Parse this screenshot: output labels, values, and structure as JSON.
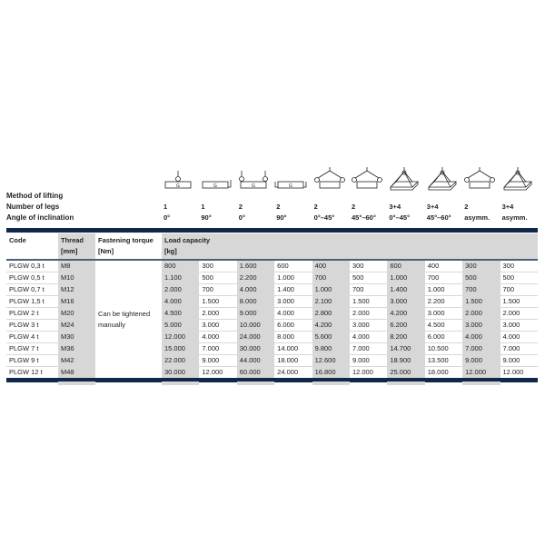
{
  "lifting": {
    "method_label": "Method of lifting",
    "legs_label": "Number of legs",
    "angle_label": "Angle of inclination",
    "methods": [
      {
        "icon": "single-leg-vertical-icon",
        "legs": "1",
        "angle": "0°"
      },
      {
        "icon": "single-leg-side-icon",
        "legs": "1",
        "angle": "90°"
      },
      {
        "icon": "two-leg-vertical-icon",
        "legs": "2",
        "angle": "0°"
      },
      {
        "icon": "two-leg-side-icon",
        "legs": "2",
        "angle": "90°"
      },
      {
        "icon": "two-leg-sling-icon",
        "legs": "2",
        "angle": "0°–45°"
      },
      {
        "icon": "two-leg-sling-icon",
        "legs": "2",
        "angle": "45°–60°"
      },
      {
        "icon": "multi-leg-sling-icon",
        "legs": "3+4",
        "angle": "0°–45°"
      },
      {
        "icon": "multi-leg-sling-icon",
        "legs": "3+4",
        "angle": "45°–60°"
      },
      {
        "icon": "two-leg-asym-icon",
        "legs": "2",
        "angle": "asymm."
      },
      {
        "icon": "multi-leg-asym-icon",
        "legs": "3+4",
        "angle": "asymm."
      }
    ]
  },
  "table": {
    "headers": {
      "code": "Code",
      "thread": "Thread",
      "thread_unit": "[mm]",
      "torque": "Fastening torque",
      "torque_unit": "[Nm]",
      "load": "Load capacity",
      "load_unit": "[kg]"
    },
    "torque_value": "Can be tightened manually",
    "rows": [
      {
        "code": "PLGW 0,3 t",
        "thread": "M8",
        "loads": [
          "800",
          "300",
          "1.600",
          "600",
          "400",
          "300",
          "600",
          "400",
          "300",
          "300"
        ]
      },
      {
        "code": "PLGW 0,5 t",
        "thread": "M10",
        "loads": [
          "1.100",
          "500",
          "2.200",
          "1.000",
          "700",
          "500",
          "1.000",
          "700",
          "500",
          "500"
        ]
      },
      {
        "code": "PLGW 0,7 t",
        "thread": "M12",
        "loads": [
          "2.000",
          "700",
          "4.000",
          "1.400",
          "1.000",
          "700",
          "1.400",
          "1.000",
          "700",
          "700"
        ]
      },
      {
        "code": "PLGW 1,5 t",
        "thread": "M16",
        "loads": [
          "4.000",
          "1.500",
          "8.000",
          "3.000",
          "2.100",
          "1.500",
          "3.000",
          "2.200",
          "1.500",
          "1.500"
        ]
      },
      {
        "code": "PLGW 2 t",
        "thread": "M20",
        "loads": [
          "4.500",
          "2.000",
          "9.000",
          "4.000",
          "2.800",
          "2.000",
          "4.200",
          "3.000",
          "2.000",
          "2.000"
        ]
      },
      {
        "code": "PLGW 3 t",
        "thread": "M24",
        "loads": [
          "5.000",
          "3.000",
          "10.000",
          "6.000",
          "4.200",
          "3.000",
          "6.200",
          "4.500",
          "3.000",
          "3.000"
        ]
      },
      {
        "code": "PLGW 4 t",
        "thread": "M30",
        "loads": [
          "12.000",
          "4.000",
          "24.000",
          "8.000",
          "5.600",
          "4.000",
          "8.200",
          "6.000",
          "4.000",
          "4.000"
        ]
      },
      {
        "code": "PLGW 7 t",
        "thread": "M36",
        "loads": [
          "15.000",
          "7.000",
          "30.000",
          "14.000",
          "9.800",
          "7.000",
          "14.700",
          "10.500",
          "7.000",
          "7.000"
        ]
      },
      {
        "code": "PLGW 9 t",
        "thread": "M42",
        "loads": [
          "22.000",
          "9.000",
          "44.000",
          "18.000",
          "12.600",
          "9.000",
          "18.900",
          "13.500",
          "9.000",
          "9.000"
        ]
      },
      {
        "code": "PLGW 12 t",
        "thread": "M48",
        "loads": [
          "30.000",
          "12.000",
          "60.000",
          "24.000",
          "16.800",
          "12.000",
          "25.000",
          "18.000",
          "12.000",
          "12.000"
        ]
      }
    ]
  },
  "colors": {
    "bar": "#0f2748",
    "shade": "#d7d7d7"
  }
}
